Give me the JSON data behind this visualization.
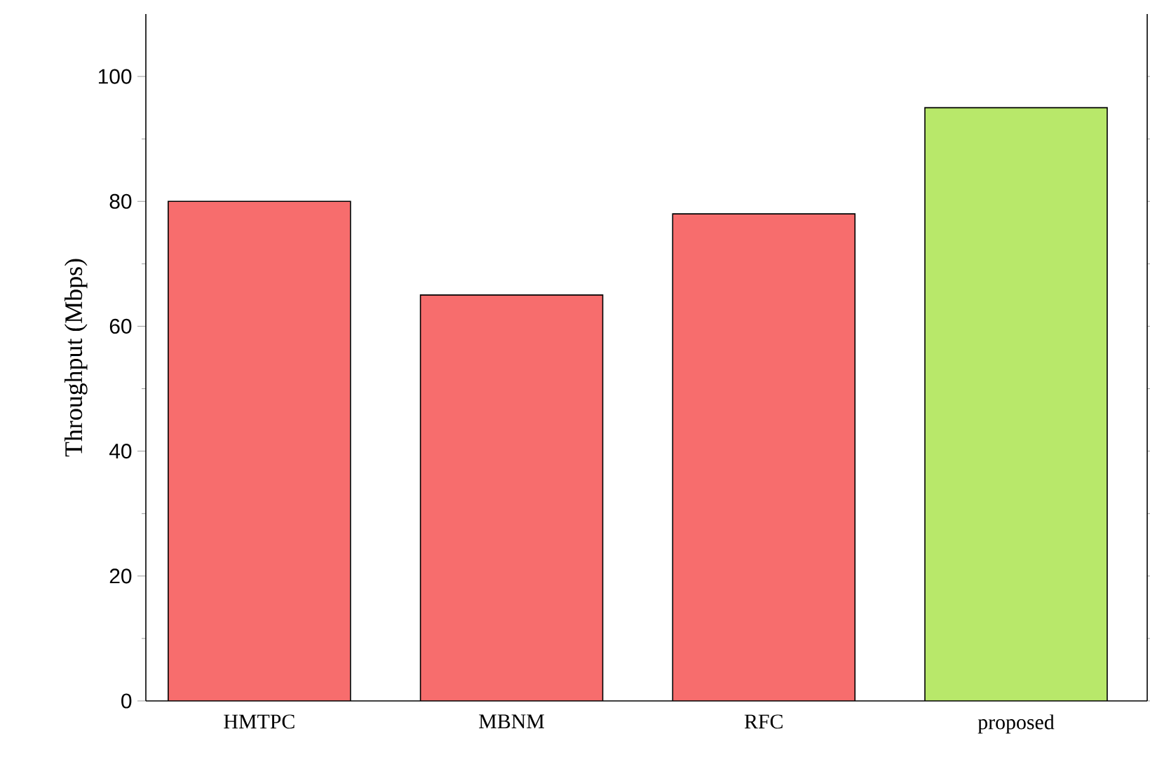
{
  "chart_data": {
    "type": "bar",
    "ylabel": "Throughput (Mbps)",
    "categories": [
      "HMTPC",
      "MBNM",
      "RFC",
      "proposed"
    ],
    "values": [
      80,
      65,
      78,
      95
    ],
    "colors": [
      "#f76d6d",
      "#f76d6d",
      "#f76d6d",
      "#b8e86a"
    ],
    "ylim": [
      0,
      110
    ],
    "yticks": [
      0,
      20,
      40,
      60,
      80,
      100
    ],
    "grid": false
  }
}
